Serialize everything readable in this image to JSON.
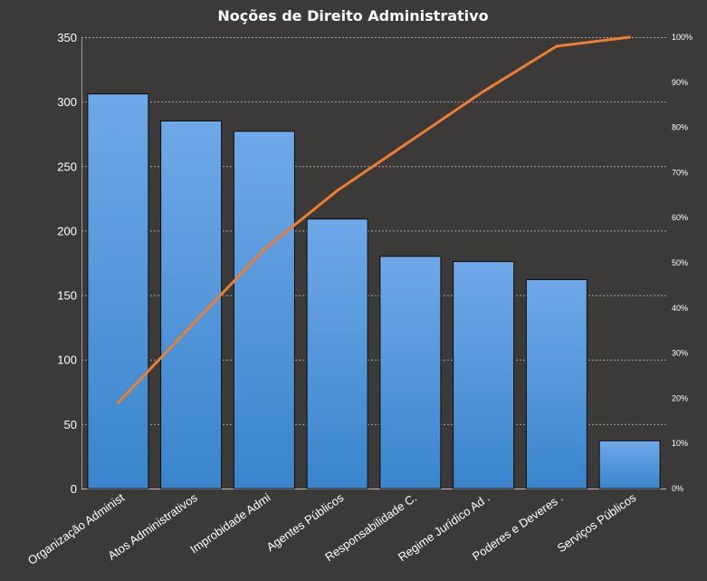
{
  "chart_data": {
    "type": "bar",
    "title": "Noções de Direito  Administrativo",
    "categories": [
      "Organização Administ",
      "Atos Administrativos",
      "Improbidade  Admi",
      "Agentes Públicos",
      "Responsabilidade C.",
      "Regime Jurídico Ad .",
      "Poderes e Deveres .",
      "Serviços Públicos"
    ],
    "series": [
      {
        "values": [
          306,
          285,
          277,
          209,
          180,
          176,
          162,
          37
        ]
      },
      {
        "type": "line",
        "axis": "secondary",
        "values": [
          0.19,
          0.36,
          0.53,
          0.66,
          0.77,
          0.88,
          0.98,
          1.0
        ]
      }
    ],
    "ylim": [
      0,
      350
    ],
    "yticks": [
      "0",
      "50",
      "100",
      "150",
      "200",
      "250",
      "300",
      "350"
    ],
    "y2lim": [
      0,
      1
    ],
    "y2ticks": [
      "0%",
      "10%",
      "20%",
      "30%",
      "40%",
      "50%",
      "60%",
      "70%",
      "80%",
      "90%",
      "100%"
    ],
    "grid": true,
    "colors": {
      "background": "#3b3a39",
      "bar_top": "#6fa8e8",
      "bar_bottom": "#3a85cc",
      "bar_edge": "#0d0d0d",
      "line": "#ed7d31",
      "grid": "#c8c8c8",
      "text": "#ffffff"
    }
  }
}
